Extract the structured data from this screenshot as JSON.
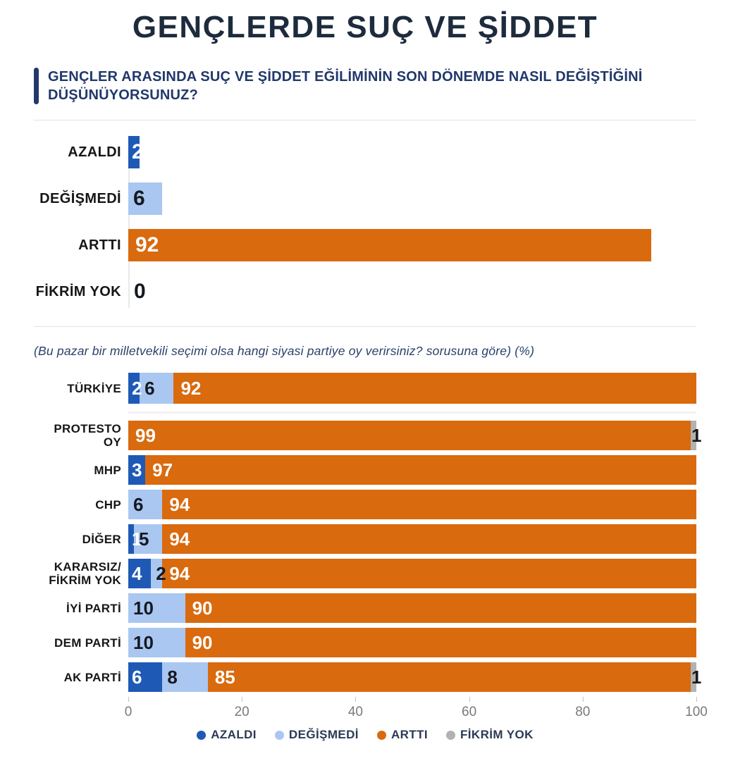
{
  "title": "GENÇLERDE SUÇ VE ŞİDDET",
  "question": "GENÇLER ARASINDA SUÇ VE ŞİDDET EĞİLİMİNİN SON DÖNEMDE NASIL DEĞİŞTİĞİNİ DÜŞÜNÜYORSUNUZ?",
  "note": "(Bu pazar bir milletvekili seçimi olsa hangi siyasi partiye oy verirsiniz? sorusuna göre) (%)",
  "colors": {
    "azaldi": "#1e5ab5",
    "azaldi_text": "#ffffff",
    "degismedi": "#a9c7f1",
    "degismedi_text": "#15191f",
    "artti": "#d96a0e",
    "artti_text": "#ffffff",
    "fikrim_yok": "#b2b2b2",
    "fikrim_yok_text": "#15191f",
    "title_text": "#1d2b3d",
    "question_text": "#21386a",
    "category_text": "#161616",
    "tick_text": "#7a7a7a",
    "legend_text": "#2b3a55"
  },
  "legend": [
    {
      "label": "AZALDI",
      "color_key": "azaldi"
    },
    {
      "label": "DEĞİŞMEDİ",
      "color_key": "degismedi"
    },
    {
      "label": "ARTTI",
      "color_key": "artti"
    },
    {
      "label": "FİKRİM YOK",
      "color_key": "fikrim_yok"
    }
  ],
  "chart_data": [
    {
      "type": "bar",
      "orientation": "horizontal",
      "xlim": [
        0,
        100
      ],
      "grid": false,
      "categories": [
        "AZALDI",
        "DEĞİŞMEDİ",
        "ARTTI",
        "FİKRİM YOK"
      ],
      "values": [
        2,
        6,
        92,
        0
      ],
      "series_colors": [
        "azaldi",
        "degismedi",
        "artti",
        "fikrim_yok"
      ]
    },
    {
      "type": "bar",
      "subtype": "stacked",
      "orientation": "horizontal",
      "xlim": [
        0,
        100
      ],
      "x_ticks": [
        0,
        20,
        40,
        60,
        80,
        100
      ],
      "legend_position": "bottom",
      "categories": [
        "TÜRKİYE",
        "PROTESTO OY",
        "MHP",
        "CHP",
        "DİĞER",
        "KARARSIZ/\nFİKRİM YOK",
        "İYİ PARTİ",
        "DEM PARTİ",
        "AK PARTİ"
      ],
      "series": [
        {
          "name": "AZALDI",
          "color_key": "azaldi",
          "values": [
            2,
            0,
            3,
            0,
            1,
            4,
            0,
            0,
            6
          ]
        },
        {
          "name": "DEĞİŞMEDİ",
          "color_key": "degismedi",
          "values": [
            6,
            0,
            0,
            6,
            5,
            2,
            10,
            10,
            8
          ]
        },
        {
          "name": "ARTTI",
          "color_key": "artti",
          "values": [
            92,
            99,
            97,
            94,
            94,
            94,
            90,
            90,
            85
          ]
        },
        {
          "name": "FİKRİM YOK",
          "color_key": "fikrim_yok",
          "values": [
            0,
            1,
            0,
            0,
            0,
            0,
            0,
            0,
            1
          ]
        }
      ]
    }
  ]
}
